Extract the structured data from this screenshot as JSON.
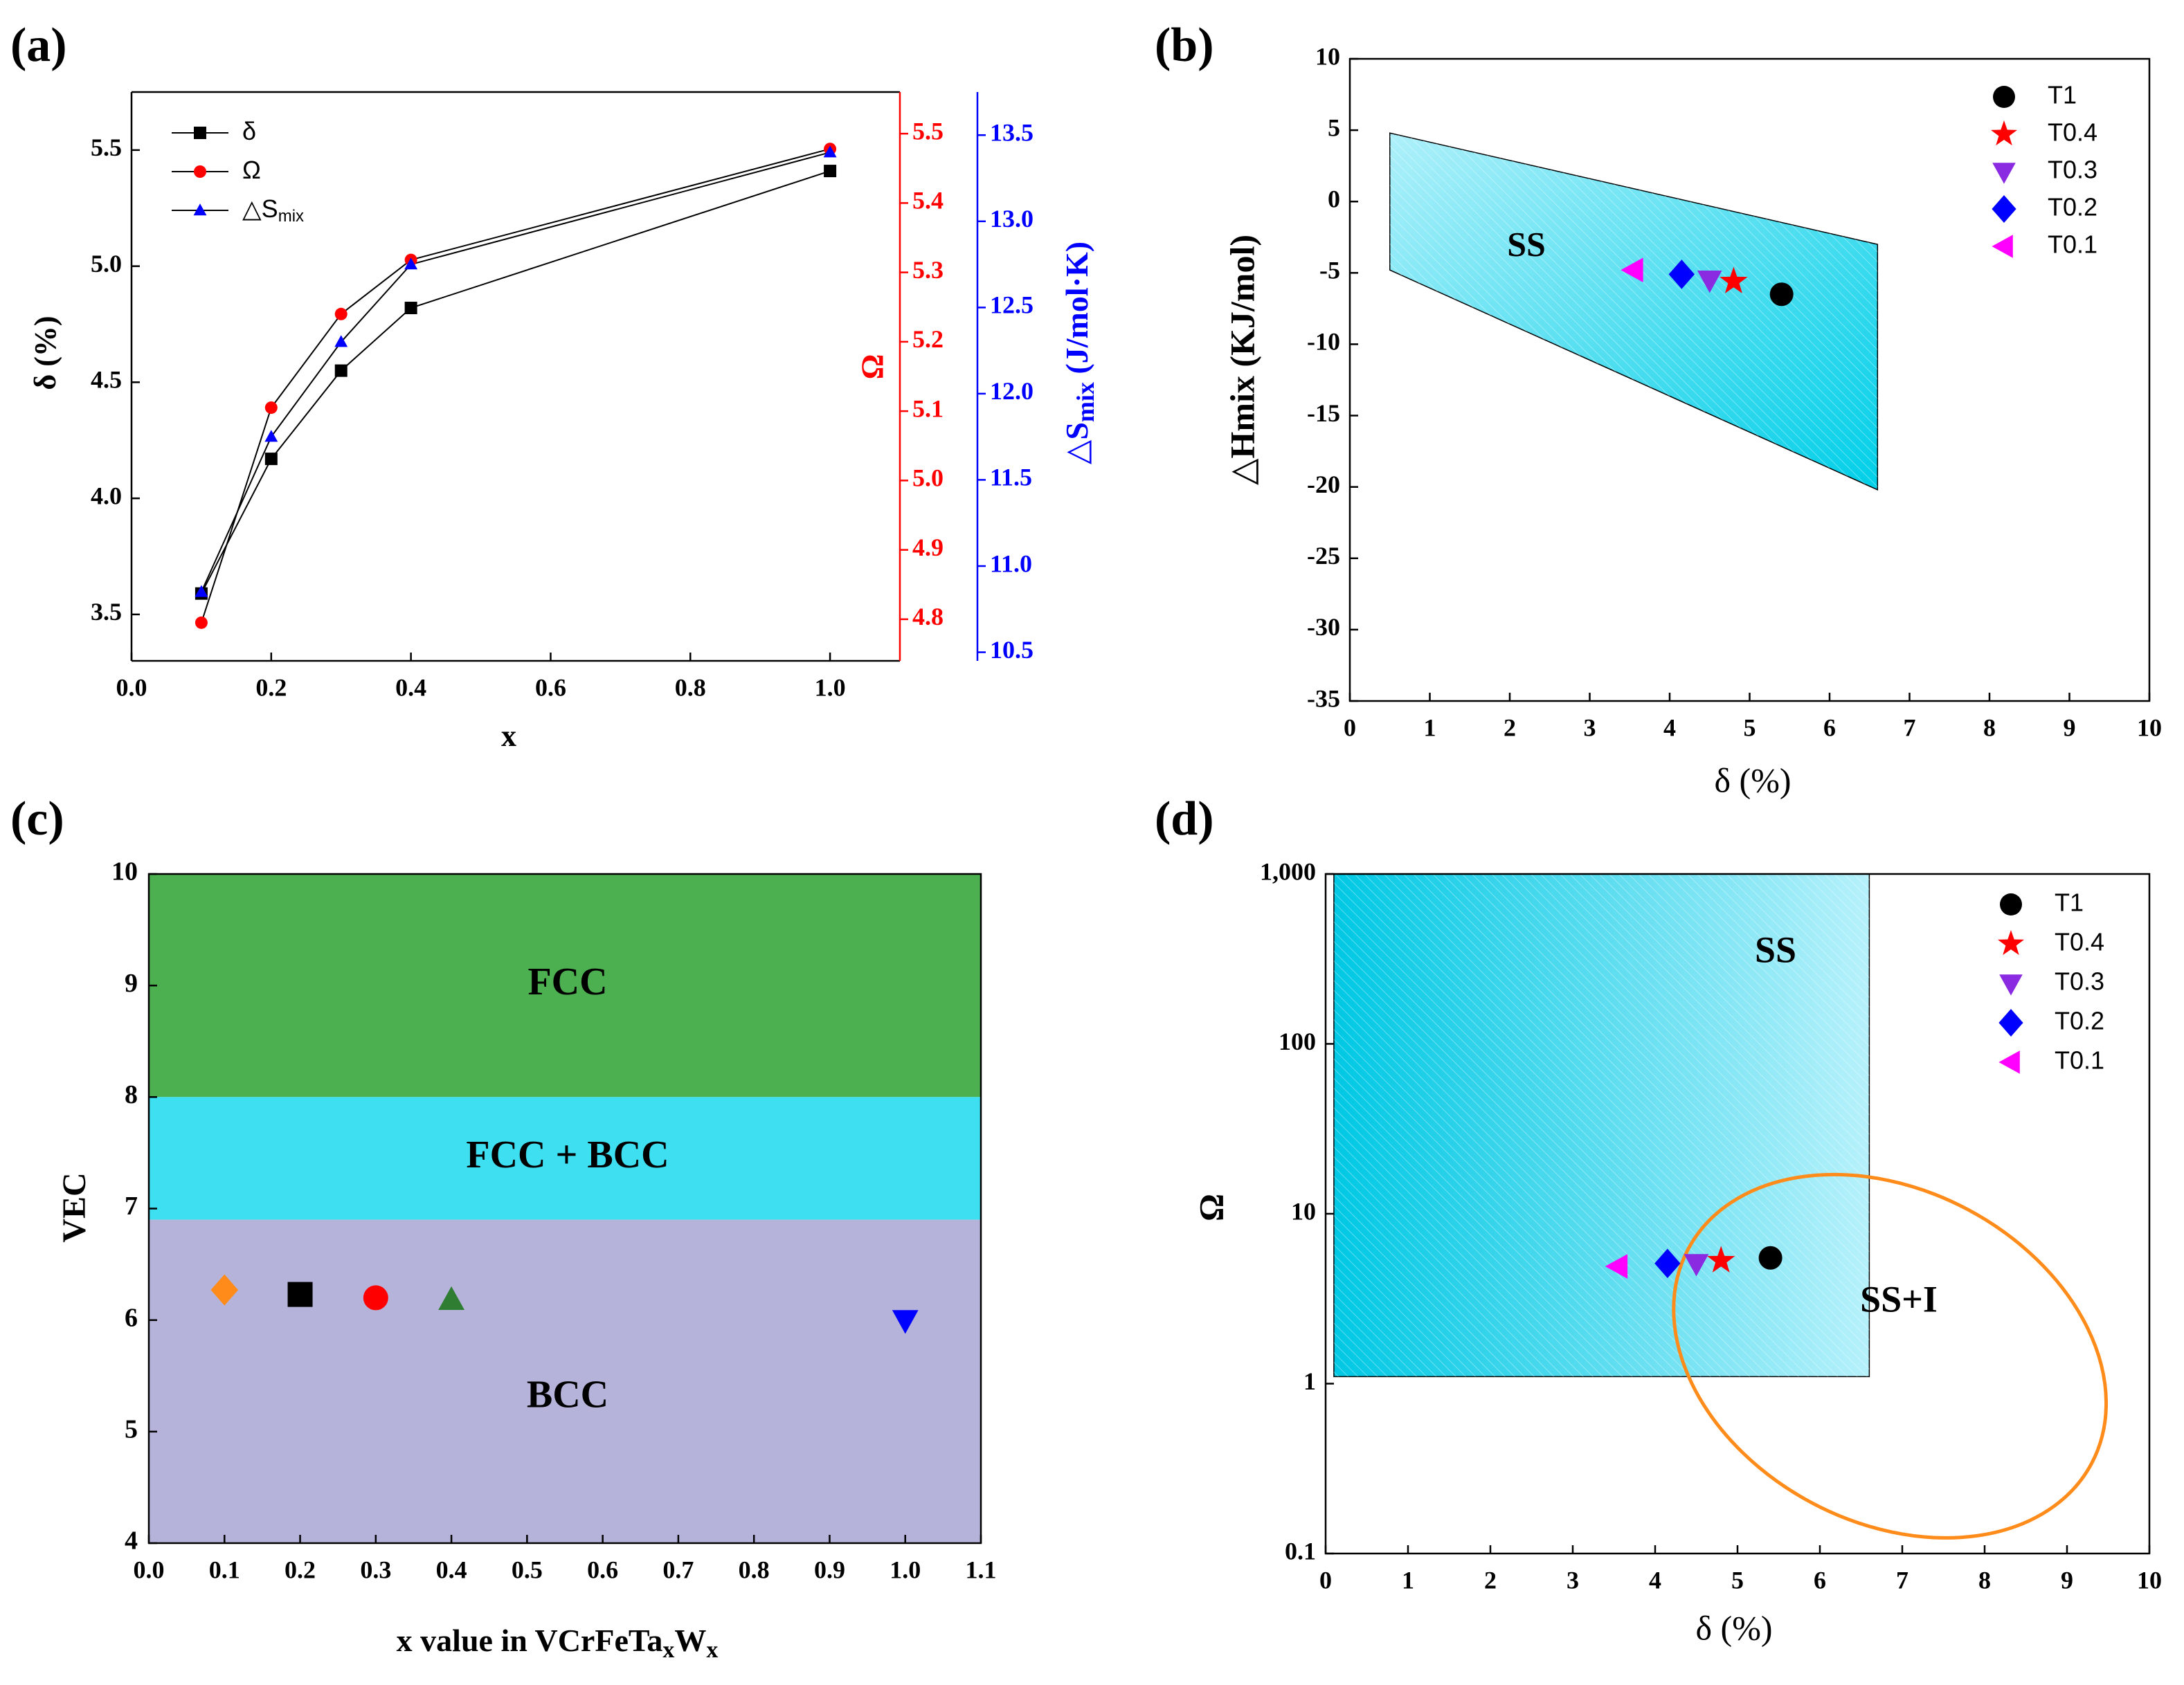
{
  "chart_data": [
    {
      "panel_label": "(a)",
      "type": "line",
      "xlabel": "x",
      "x_ticks": [
        "0.0",
        "0.2",
        "0.4",
        "0.6",
        "0.8",
        "1.0"
      ],
      "xlim": [
        0.0,
        1.1
      ],
      "ylabel_left": "δ (%)",
      "ylim_left": [
        3.3,
        5.75
      ],
      "y_ticks_left": [
        "3.5",
        "4.0",
        "4.5",
        "5.0",
        "5.5"
      ],
      "ylabel_mid": "Ω",
      "ylim_mid": [
        4.74,
        5.56
      ],
      "y_ticks_mid": [
        "4.8",
        "4.9",
        "5.0",
        "5.1",
        "5.2",
        "5.3",
        "5.4",
        "5.5"
      ],
      "ylabel_right_main": "△S",
      "ylabel_right_sub": "mix",
      "ylabel_right_tail": " (J/mol·K)",
      "ylim_right": [
        10.45,
        13.75
      ],
      "y_ticks_right": [
        "10.5",
        "11.0",
        "11.5",
        "12.0",
        "12.5",
        "13.0",
        "13.5"
      ],
      "legend": [
        {
          "label": "δ",
          "sub": "",
          "color": "#000000",
          "marker": "square"
        },
        {
          "label": "Ω",
          "sub": "",
          "color": "#ff0000",
          "marker": "circle"
        },
        {
          "label": "△S",
          "sub": "mix",
          "color": "#0000ff",
          "marker": "triangle"
        }
      ],
      "series": [
        {
          "name": "δ",
          "axis": "left",
          "color": "#000000",
          "marker": "square",
          "x": [
            0.1,
            0.2,
            0.3,
            0.4,
            1.0
          ],
          "values": [
            3.59,
            4.17,
            4.55,
            4.82,
            5.41
          ]
        },
        {
          "name": "Ω",
          "axis": "mid",
          "color": "#ff0000",
          "marker": "circle",
          "x": [
            0.1,
            0.2,
            0.3,
            0.4,
            1.0
          ],
          "values": [
            4.795,
            5.105,
            5.24,
            5.318,
            5.478
          ]
        },
        {
          "name": "△Smix",
          "axis": "right",
          "color": "#0000ff",
          "marker": "triangle",
          "x": [
            0.1,
            0.2,
            0.3,
            0.4,
            1.0
          ],
          "values": [
            10.85,
            11.75,
            12.3,
            12.75,
            13.4
          ]
        }
      ]
    },
    {
      "panel_label": "(b)",
      "type": "scatter",
      "xlabel": "δ (%)",
      "ylabel": "△Hmix (KJ/mol)",
      "xlim": [
        0,
        10
      ],
      "ylim": [
        -35,
        10
      ],
      "x_ticks": [
        "0",
        "1",
        "2",
        "3",
        "4",
        "5",
        "6",
        "7",
        "8",
        "9",
        "10"
      ],
      "y_ticks": [
        "-35",
        "-30",
        "-25",
        "-20",
        "-15",
        "-10",
        "-5",
        "0",
        "5",
        "10"
      ],
      "region": {
        "label": "SS",
        "polygon": [
          [
            0.5,
            4.8
          ],
          [
            6.6,
            -3.0
          ],
          [
            6.6,
            -20.2
          ],
          [
            0.5,
            -4.8
          ]
        ],
        "color": "#00cce6"
      },
      "points": [
        {
          "name": "T1",
          "x": 5.4,
          "y": -6.5,
          "marker": "circle",
          "color": "#000000"
        },
        {
          "name": "T0.4",
          "x": 4.8,
          "y": -5.6,
          "marker": "star",
          "color": "#ff0000"
        },
        {
          "name": "T0.3",
          "x": 4.5,
          "y": -5.5,
          "marker": "triangle-down",
          "color": "#8a2be2"
        },
        {
          "name": "T0.2",
          "x": 4.15,
          "y": -5.1,
          "marker": "diamond",
          "color": "#0000ff"
        },
        {
          "name": "T0.1",
          "x": 3.55,
          "y": -4.8,
          "marker": "triangle-left",
          "color": "#ff00ff"
        }
      ]
    },
    {
      "panel_label": "(c)",
      "type": "scatter",
      "xlabel_main": "x value in VCrFeTa",
      "xlabel_sub1": "x",
      "xlabel_mid": "W",
      "xlabel_sub2": "x",
      "ylabel": "VEC",
      "xlim": [
        0.0,
        1.1
      ],
      "ylim": [
        4,
        10
      ],
      "x_ticks": [
        "0.0",
        "0.1",
        "0.2",
        "0.3",
        "0.4",
        "0.5",
        "0.6",
        "0.7",
        "0.8",
        "0.9",
        "1.0",
        "1.1"
      ],
      "y_ticks": [
        "4",
        "5",
        "6",
        "7",
        "8",
        "9",
        "10"
      ],
      "regions": [
        {
          "label": "FCC",
          "from": 8.0,
          "to": 10.0,
          "color": "#4caf50"
        },
        {
          "label": "FCC + BCC",
          "from": 6.9,
          "to": 8.0,
          "color": "#3ddff0"
        },
        {
          "label": "BCC",
          "from": 4.0,
          "to": 6.9,
          "color": "#b6b3da"
        }
      ],
      "points": [
        {
          "x": 0.1,
          "y": 6.27,
          "marker": "diamond",
          "color": "#ff8c1a"
        },
        {
          "x": 0.2,
          "y": 6.23,
          "marker": "square",
          "color": "#000000"
        },
        {
          "x": 0.3,
          "y": 6.2,
          "marker": "circle",
          "color": "#ff0000"
        },
        {
          "x": 0.4,
          "y": 6.18,
          "marker": "triangle",
          "color": "#2e7d32"
        },
        {
          "x": 1.0,
          "y": 6.0,
          "marker": "triangle-down",
          "color": "#0000ff"
        }
      ]
    },
    {
      "panel_label": "(d)",
      "type": "scatter",
      "xlabel": "δ (%)",
      "ylabel": "Ω",
      "xlim": [
        0,
        10
      ],
      "ylim": [
        0.1,
        1000
      ],
      "yscale": "log",
      "x_ticks": [
        "0",
        "1",
        "2",
        "3",
        "4",
        "5",
        "6",
        "7",
        "8",
        "9",
        "10"
      ],
      "y_ticks": [
        "0.1",
        "1",
        "10",
        "100",
        "1,000"
      ],
      "region": {
        "label": "SS",
        "x": [
          0.1,
          6.6
        ],
        "y": [
          1.1,
          1000
        ],
        "color": "#00cce6"
      },
      "ellipse": {
        "label": "SS+I",
        "center": [
          6.85,
          1.45
        ],
        "color": "#ff8c1a"
      },
      "points": [
        {
          "name": "T1",
          "x": 5.4,
          "y": 5.5,
          "marker": "circle",
          "color": "#000000"
        },
        {
          "name": "T0.4",
          "x": 4.8,
          "y": 5.3,
          "marker": "star",
          "color": "#ff0000"
        },
        {
          "name": "T0.3",
          "x": 4.5,
          "y": 5.1,
          "marker": "triangle-down",
          "color": "#8a2be2"
        },
        {
          "name": "T0.2",
          "x": 4.15,
          "y": 5.1,
          "marker": "diamond",
          "color": "#0000ff"
        },
        {
          "name": "T0.1",
          "x": 3.55,
          "y": 4.9,
          "marker": "triangle-left",
          "color": "#ff00ff"
        }
      ]
    }
  ]
}
